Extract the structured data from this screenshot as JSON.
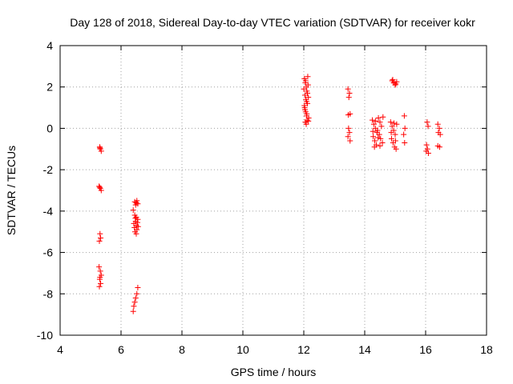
{
  "chart_data": {
    "type": "scatter",
    "title": "Day 128 of 2018, Sidereal Day-to-day VTEC variation (SDTVAR) for receiver kokr",
    "xlabel": "GPS time / hours",
    "ylabel": "SDTVAR / TECUs",
    "xlim": [
      4,
      18
    ],
    "ylim": [
      -10,
      4
    ],
    "xticks": [
      4,
      6,
      8,
      10,
      12,
      14,
      16,
      18
    ],
    "yticks": [
      -10,
      -8,
      -6,
      -4,
      -2,
      0,
      2,
      4
    ],
    "xtick_labels": [
      "4",
      "6",
      "8",
      "10",
      "12",
      "14",
      "16",
      "18"
    ],
    "ytick_labels": [
      "-10",
      "-8",
      "-6",
      "-4",
      "-2",
      "0",
      "2",
      "4"
    ],
    "grid": true,
    "marker": "plus",
    "color": "#ff0000",
    "series": [
      {
        "name": "SDTVAR",
        "points": [
          [
            5.3,
            -0.9
          ],
          [
            5.32,
            -1.0
          ],
          [
            5.35,
            -1.1
          ],
          [
            5.31,
            -0.95
          ],
          [
            5.28,
            -2.8
          ],
          [
            5.32,
            -2.9
          ],
          [
            5.35,
            -3.0
          ],
          [
            5.3,
            -2.85
          ],
          [
            5.31,
            -5.1
          ],
          [
            5.33,
            -5.3
          ],
          [
            5.29,
            -5.45
          ],
          [
            5.28,
            -6.7
          ],
          [
            5.32,
            -6.9
          ],
          [
            5.35,
            -7.1
          ],
          [
            5.3,
            -7.3
          ],
          [
            5.33,
            -7.5
          ],
          [
            5.29,
            -7.65
          ],
          [
            5.31,
            -7.2
          ],
          [
            6.45,
            -3.55
          ],
          [
            6.5,
            -3.6
          ],
          [
            6.55,
            -3.65
          ],
          [
            6.48,
            -3.7
          ],
          [
            6.52,
            -3.5
          ],
          [
            6.4,
            -3.95
          ],
          [
            6.45,
            -4.2
          ],
          [
            6.5,
            -4.3
          ],
          [
            6.55,
            -4.4
          ],
          [
            6.48,
            -4.5
          ],
          [
            6.42,
            -4.6
          ],
          [
            6.5,
            -4.7
          ],
          [
            6.56,
            -4.75
          ],
          [
            6.44,
            -4.8
          ],
          [
            6.52,
            -4.9
          ],
          [
            6.46,
            -5.0
          ],
          [
            6.5,
            -5.1
          ],
          [
            6.54,
            -4.55
          ],
          [
            6.47,
            -4.35
          ],
          [
            6.55,
            -7.7
          ],
          [
            6.52,
            -8.0
          ],
          [
            6.48,
            -8.2
          ],
          [
            6.45,
            -8.4
          ],
          [
            6.42,
            -8.6
          ],
          [
            6.4,
            -8.85
          ],
          [
            12.02,
            2.4
          ],
          [
            12.05,
            2.2
          ],
          [
            12.08,
            2.0
          ],
          [
            12.1,
            1.8
          ],
          [
            12.04,
            1.6
          ],
          [
            12.07,
            1.4
          ],
          [
            12.12,
            1.2
          ],
          [
            12.03,
            1.0
          ],
          [
            12.06,
            0.8
          ],
          [
            12.09,
            0.6
          ],
          [
            12.11,
            0.4
          ],
          [
            12.05,
            0.3
          ],
          [
            12.13,
            2.5
          ],
          [
            12.0,
            1.9
          ],
          [
            12.15,
            1.5
          ],
          [
            12.08,
            0.2
          ],
          [
            12.14,
            2.1
          ],
          [
            12.02,
            1.1
          ],
          [
            12.1,
            0.7
          ],
          [
            12.16,
            0.5
          ],
          [
            12.06,
            2.3
          ],
          [
            12.12,
            1.7
          ],
          [
            12.04,
            0.9
          ],
          [
            12.09,
            1.3
          ],
          [
            12.15,
            0.35
          ],
          [
            13.45,
            1.9
          ],
          [
            13.5,
            1.7
          ],
          [
            13.48,
            1.5
          ],
          [
            13.52,
            0.7
          ],
          [
            13.46,
            0.65
          ],
          [
            13.47,
            0.0
          ],
          [
            13.5,
            -0.2
          ],
          [
            13.45,
            -0.4
          ],
          [
            13.52,
            -0.6
          ],
          [
            14.25,
            0.4
          ],
          [
            14.3,
            0.2
          ],
          [
            14.35,
            0.0
          ],
          [
            14.4,
            -0.2
          ],
          [
            14.28,
            -0.4
          ],
          [
            14.33,
            -0.6
          ],
          [
            14.38,
            -0.8
          ],
          [
            14.45,
            0.5
          ],
          [
            14.5,
            0.3
          ],
          [
            14.55,
            0.1
          ],
          [
            14.42,
            -0.1
          ],
          [
            14.48,
            -0.3
          ],
          [
            14.52,
            -0.5
          ],
          [
            14.58,
            -0.7
          ],
          [
            14.36,
            0.35
          ],
          [
            14.44,
            -0.45
          ],
          [
            14.27,
            -0.15
          ],
          [
            14.6,
            0.55
          ],
          [
            14.32,
            -0.9
          ],
          [
            14.5,
            -0.85
          ],
          [
            14.9,
            2.3
          ],
          [
            14.95,
            2.2
          ],
          [
            15.0,
            2.1
          ],
          [
            15.05,
            2.25
          ],
          [
            14.92,
            2.35
          ],
          [
            15.02,
            2.15
          ],
          [
            14.85,
            0.3
          ],
          [
            14.9,
            0.1
          ],
          [
            14.95,
            -0.1
          ],
          [
            15.0,
            -0.3
          ],
          [
            14.88,
            -0.5
          ],
          [
            14.93,
            -0.7
          ],
          [
            14.98,
            -0.9
          ],
          [
            15.03,
            -1.0
          ],
          [
            15.05,
            0.2
          ],
          [
            14.87,
            -0.2
          ],
          [
            15.01,
            -0.6
          ],
          [
            14.96,
            0.25
          ],
          [
            15.3,
            0.6
          ],
          [
            15.32,
            0.0
          ],
          [
            15.28,
            -0.3
          ],
          [
            15.31,
            -0.7
          ],
          [
            16.05,
            0.3
          ],
          [
            16.08,
            0.1
          ],
          [
            16.03,
            -0.8
          ],
          [
            16.06,
            -1.0
          ],
          [
            16.02,
            -1.1
          ],
          [
            16.09,
            -1.2
          ],
          [
            16.4,
            0.2
          ],
          [
            16.45,
            0.0
          ],
          [
            16.42,
            -0.2
          ],
          [
            16.48,
            -0.3
          ],
          [
            16.4,
            -0.85
          ],
          [
            16.46,
            -0.9
          ]
        ]
      }
    ]
  }
}
